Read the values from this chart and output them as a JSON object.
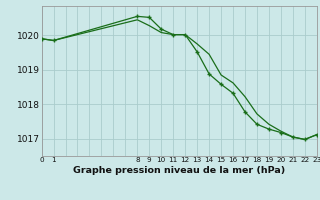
{
  "title": "Graphe pression niveau de la mer (hPa)",
  "bg_color": "#cce8e8",
  "grid_color": "#aacccc",
  "line_color": "#1a6e1a",
  "x_smooth": [
    0,
    1,
    8,
    9,
    10,
    11,
    12,
    13,
    14,
    15,
    16,
    17,
    18,
    19,
    20,
    21,
    22,
    23
  ],
  "y_smooth": [
    1019.9,
    1019.85,
    1020.45,
    1020.28,
    1020.08,
    1020.02,
    1020.02,
    1019.75,
    1019.45,
    1018.85,
    1018.62,
    1018.22,
    1017.72,
    1017.42,
    1017.22,
    1017.05,
    1016.98,
    1017.12
  ],
  "x_marked": [
    0,
    1,
    8,
    9,
    10,
    11,
    12,
    13,
    14,
    15,
    16,
    17,
    18,
    19,
    20,
    21,
    22,
    23
  ],
  "y_marked": [
    1019.9,
    1019.85,
    1020.55,
    1020.52,
    1020.18,
    1020.02,
    1020.02,
    1019.52,
    1018.88,
    1018.58,
    1018.32,
    1017.78,
    1017.42,
    1017.28,
    1017.18,
    1017.05,
    1016.98,
    1017.12
  ],
  "xlim": [
    0,
    23
  ],
  "ylim": [
    1016.5,
    1020.85
  ],
  "yticks": [
    1017,
    1018,
    1019,
    1020
  ],
  "xtick_positions": [
    0,
    1,
    8,
    9,
    10,
    11,
    12,
    13,
    14,
    15,
    16,
    17,
    18,
    19,
    20,
    21,
    22,
    23
  ],
  "xtick_labels": [
    "0",
    "1",
    "8",
    "9",
    "10",
    "11",
    "12",
    "13",
    "14",
    "15",
    "16",
    "17",
    "18",
    "19",
    "20",
    "21",
    "22",
    "23"
  ],
  "ylabel_fontsize": 5.5,
  "xlabel_fontsize": 6.8,
  "ytick_fontsize": 6.5,
  "xtick_fontsize": 5.2
}
